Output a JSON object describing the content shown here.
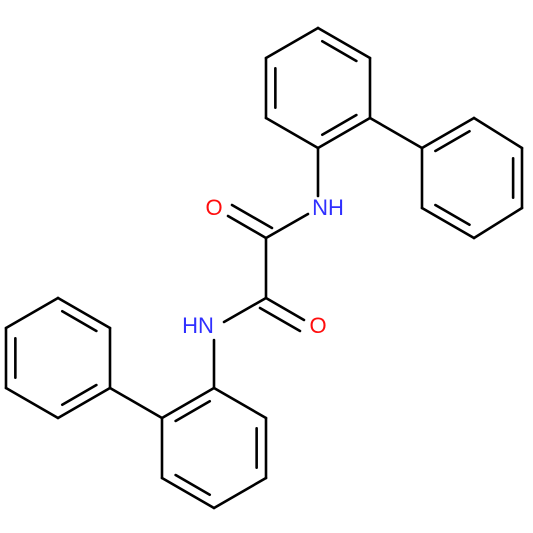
{
  "atoms": [
    {
      "label": "O"
    },
    {
      "label": "NH"
    },
    {
      "label": "HN"
    },
    {
      "label": "O"
    }
  ]
}
